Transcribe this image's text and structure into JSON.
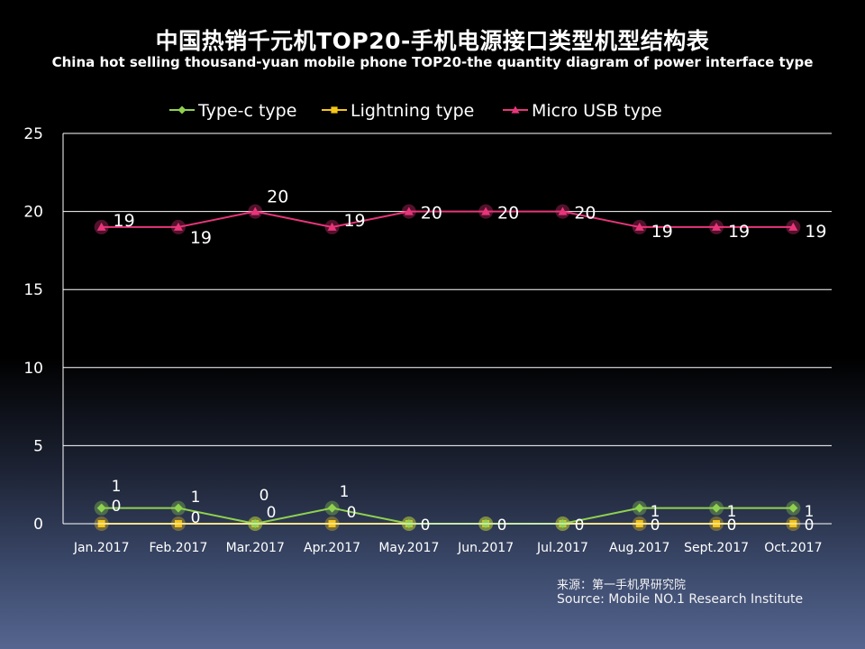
{
  "header": {
    "title_cn": "中国热销千元机TOP20-手机电源接口类型机型结构表",
    "title_en": "China hot selling thousand-yuan mobile phone TOP20-the quantity diagram of power interface type"
  },
  "source": {
    "cn": "来源：第一手机界研究院",
    "en": "Source: Mobile NO.1 Research Institute"
  },
  "chart_data": {
    "type": "line",
    "title": "中国热销千元机TOP20-手机电源接口类型机型结构表",
    "subtitle": "China hot selling thousand-yuan mobile phone TOP20-the quantity diagram of power interface type",
    "xlabel": "",
    "ylabel": "",
    "ylim": [
      0,
      25
    ],
    "yticks": [
      0,
      5,
      10,
      15,
      20,
      25
    ],
    "grid": true,
    "legend": "top",
    "categories": [
      "Jan.2017",
      "Feb.2017",
      "Mar.2017",
      "Apr.2017",
      "May.2017",
      "Jun.2017",
      "Jul.2017",
      "Aug.2017",
      "Sept.2017",
      "Oct.2017"
    ],
    "series": [
      {
        "name": "Type-c type",
        "color": "#8fd14f",
        "marker": "diamond",
        "values": [
          1,
          1,
          0,
          1,
          0,
          0,
          0,
          1,
          1,
          1
        ]
      },
      {
        "name": "Lightning type",
        "color": "#f5c518",
        "marker": "square",
        "values": [
          0,
          0,
          0,
          0,
          0,
          0,
          0,
          0,
          0,
          0
        ]
      },
      {
        "name": "Micro USB type",
        "color": "#e8357a",
        "marker": "triangle",
        "values": [
          19,
          19,
          20,
          19,
          20,
          20,
          20,
          19,
          19,
          19
        ]
      }
    ]
  }
}
